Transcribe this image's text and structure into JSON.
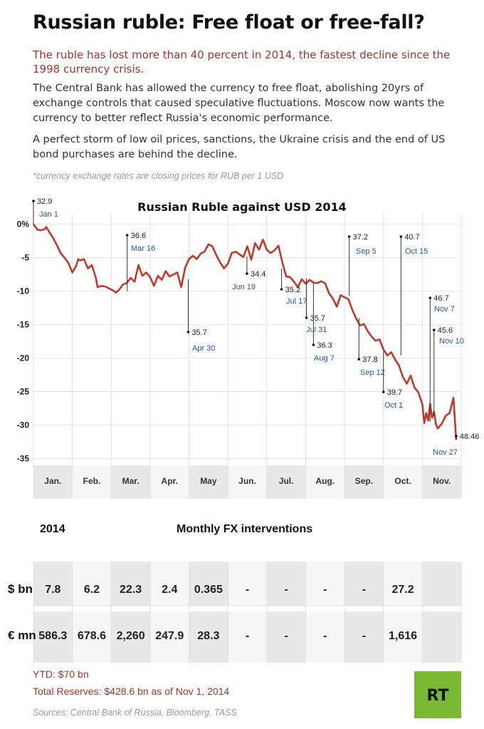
{
  "header": {
    "title": "Russian ruble: Free float or free-fall?",
    "lead": "The ruble has lost more than 40 percent in 2014, the fastest decline since the 1998 currency crisis.",
    "para1": "The Central Bank has allowed the currency to free float, abolishing 20yrs of exchange controls that caused speculative fluctuations. Moscow now wants the currency to better reflect Russia's economic performance.",
    "para2": "A perfect storm of low oil prices, sanctions, the Ukraine crisis and the end of US bond purchases are behind the decline.",
    "note": "*currency exchange rates are closing prices for RUB per 1 USD"
  },
  "chart_data": {
    "type": "line",
    "title": "Russian Ruble against USD 2014",
    "y_tick_labels": [
      "0%",
      "-5",
      "-10",
      "-15",
      "-20",
      "-25",
      "-30",
      "-35"
    ],
    "y_ticks": [
      0,
      -5,
      -10,
      -15,
      -20,
      -25,
      -30,
      -35
    ],
    "ylim": [
      -36,
      0.5
    ],
    "xlim": [
      0,
      11
    ],
    "month_labels": [
      "Jan.",
      "Feb.",
      "Mar.",
      "Apr.",
      "May",
      "Jun.",
      "Jul.",
      "Aug.",
      "Sep.",
      "Oct.",
      "Nov."
    ],
    "grid": true,
    "line_color": "#c0392b",
    "series": [
      {
        "x": [
          0,
          0.1,
          0.2,
          0.3,
          0.33,
          0.4,
          0.5,
          0.6,
          0.7,
          0.8,
          0.9,
          1.0,
          1.1,
          1.15,
          1.2,
          1.3,
          1.4,
          1.5,
          1.6,
          1.65,
          1.75,
          1.85,
          1.95,
          2.05,
          2.12,
          2.2,
          2.3,
          2.4,
          2.5,
          2.6,
          2.7,
          2.8,
          2.9,
          3.0,
          3.1,
          3.2,
          3.3,
          3.4,
          3.5,
          3.6,
          3.7,
          3.8,
          3.9,
          4.0,
          4.1,
          4.2,
          4.3,
          4.4,
          4.5,
          4.6,
          4.7,
          4.8,
          4.9,
          5.0,
          5.1,
          5.2,
          5.3,
          5.4,
          5.5,
          5.6,
          5.7,
          5.8,
          5.9,
          6.0,
          6.1,
          6.2,
          6.3,
          6.4,
          6.5,
          6.6,
          6.7,
          6.8,
          6.9,
          7.0,
          7.1,
          7.2,
          7.3,
          7.4,
          7.5,
          7.6,
          7.7,
          7.8,
          7.9,
          8.0,
          8.1,
          8.2,
          8.3,
          8.4,
          8.5,
          8.6,
          8.7,
          8.8,
          8.9,
          9.0,
          9.1,
          9.2,
          9.3,
          9.4,
          9.5,
          9.6,
          9.7,
          9.8,
          9.9,
          10.0,
          10.05,
          10.1,
          10.15,
          10.2,
          10.25,
          10.3,
          10.35,
          10.4,
          10.5,
          10.6,
          10.7,
          10.8,
          10.87
        ],
        "values": [
          0,
          -0.8,
          -0.9,
          -0.7,
          -0.4,
          -1.1,
          -2.0,
          -3.1,
          -4.3,
          -5.0,
          -5.8,
          -7.2,
          -6.2,
          -5.2,
          -5.4,
          -5.2,
          -6.6,
          -6.1,
          -7.9,
          -9.4,
          -9.2,
          -9.3,
          -9.6,
          -9.9,
          -10.2,
          -9.8,
          -9.0,
          -8.8,
          -8.0,
          -8.6,
          -6.1,
          -7.7,
          -7.2,
          -7.9,
          -9.2,
          -7.7,
          -8.3,
          -7.0,
          -7.8,
          -7.5,
          -7.2,
          -9.4,
          -6.5,
          -5.2,
          -4.7,
          -5.2,
          -4.4,
          -4.1,
          -3.0,
          -3.3,
          -4.6,
          -5.7,
          -6.6,
          -5.9,
          -4.3,
          -4.1,
          -4.5,
          -4.9,
          -3.3,
          -5.3,
          -2.8,
          -3.8,
          -2.3,
          -3.8,
          -4.3,
          -3.9,
          -3.2,
          -5.7,
          -7.8,
          -7.9,
          -8.6,
          -9.4,
          -8.2,
          -8.9,
          -8.3,
          -8.7,
          -8.8,
          -8.5,
          -8.8,
          -10.3,
          -11.1,
          -12.3,
          -10.6,
          -10.9,
          -11.2,
          -12.8,
          -14.1,
          -15.1,
          -14.9,
          -16.0,
          -16.8,
          -17.4,
          -17.2,
          -18.7,
          -19.6,
          -19.1,
          -20.2,
          -21.1,
          -22.8,
          -23.8,
          -22.6,
          -24.4,
          -25.1,
          -26.9,
          -29.7,
          -28.2,
          -29.3,
          -26.8,
          -28.9,
          -28.0,
          -29.9,
          -30.5,
          -29.8,
          -28.6,
          -28.2,
          -25.9,
          -32.2
        ]
      }
    ],
    "annotations": [
      {
        "x": 0.0,
        "y": 0.0,
        "value": "32.9",
        "date": "Jan 1"
      },
      {
        "x": 2.41,
        "y": -10.0,
        "value": "36.6",
        "date": "Mar 16"
      },
      {
        "x": 3.98,
        "y": -8.2,
        "value": "35.7",
        "date": "Apr 30"
      },
      {
        "x": 5.49,
        "y": -4.8,
        "value": "34.4",
        "date": "Jun 19"
      },
      {
        "x": 6.38,
        "y": -6.6,
        "value": "35.2",
        "date": "Jul 17"
      },
      {
        "x": 7.02,
        "y": -8.1,
        "value": "35.7",
        "date": "Jul 31"
      },
      {
        "x": 7.2,
        "y": -8.8,
        "value": "36.3",
        "date": "Aug 7"
      },
      {
        "x": 8.12,
        "y": -10.7,
        "value": "37.2",
        "date": "Sep 5"
      },
      {
        "x": 8.37,
        "y": -14.0,
        "value": "37.8",
        "date": "Sep 12"
      },
      {
        "x": 9.0,
        "y": -19.0,
        "value": "39.7",
        "date": "Oct 1"
      },
      {
        "x": 9.45,
        "y": -19.6,
        "value": "40.7",
        "date": "Oct 15"
      },
      {
        "x": 10.2,
        "y": -29.5,
        "value": "46.7",
        "date": "Nov 7"
      },
      {
        "x": 10.3,
        "y": -28.7,
        "value": "45.6",
        "date": "Nov 10"
      },
      {
        "x": 10.87,
        "y": -32.2,
        "value": "48.46",
        "date": "Nov 27"
      }
    ]
  },
  "table": {
    "year_label": "2014",
    "title": "Monthly FX interventions",
    "rows": [
      {
        "label": "$ bn",
        "cells": [
          "7.8",
          "6.2",
          "22.3",
          "2.4",
          "0.365",
          "-",
          "-",
          "-",
          "-",
          "27.2",
          ""
        ]
      },
      {
        "label": "€ mn",
        "cells": [
          "586.3",
          "678.6",
          "2,260",
          "247.9",
          "28.3",
          "-",
          "-",
          "-",
          "-",
          "1,616",
          ""
        ]
      }
    ]
  },
  "footer": {
    "ytd": "YTD: $70 bn",
    "reserves": "Total Reserves: $428.6 bn as of Nov 1, 2014",
    "sources": "Sources: Central Bank of Russia, Bloomberg, TASS",
    "logo_text": "RT",
    "logo_color": "#78b832"
  }
}
